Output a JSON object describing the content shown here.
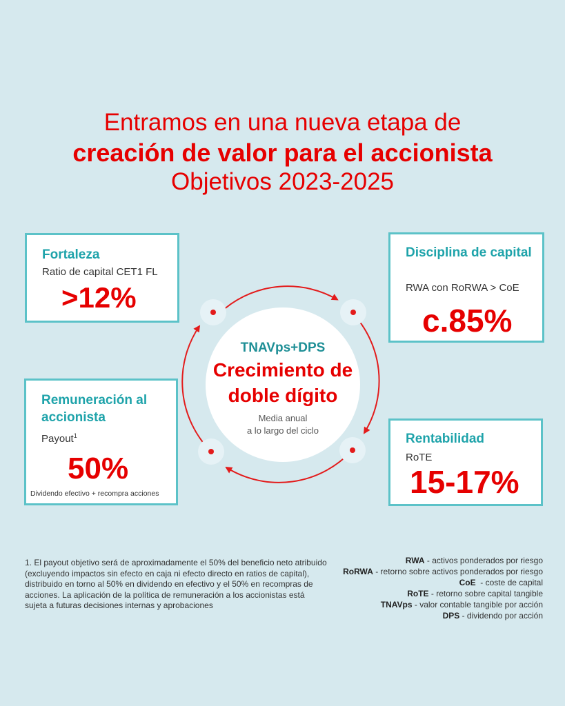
{
  "title": {
    "line1": "Entramos en una nueva etapa de",
    "line2": "creación de valor para el accionista",
    "line3": "Objetivos 2023-2025"
  },
  "cards": {
    "fortaleza": {
      "heading": "Fortaleza",
      "subtitle": "Ratio de capital CET1 FL",
      "value": ">12%"
    },
    "disciplina": {
      "heading": "Disciplina de capital",
      "subtitle": "RWA con RoRWA > CoE",
      "value": "c.85%"
    },
    "remuneracion": {
      "heading": "Remuneración al accionista",
      "subtitle": "Payout",
      "subtitle_sup": "1",
      "value": "50%",
      "note": "Dividendo efectivo + recompra acciones"
    },
    "rentabilidad": {
      "heading": "Rentabilidad",
      "subtitle": "RoTE",
      "value": "15-17%"
    }
  },
  "center": {
    "label": "TNAVps+DPS",
    "main_line1": "Crecimiento de",
    "main_line2": "doble dígito",
    "sub_line1": "Media anual",
    "sub_line2": "a lo largo del ciclo"
  },
  "footnote": "1. El payout objetivo será de aproximadamente el 50% del beneficio neto atribuido (excluyendo impactos sin efecto en caja ni efecto directo en ratios de capital), distribuido en torno al 50% en dividendo en efectivo y el 50% en recompras de acciones. La aplicación de la política de remuneración a los accionistas está sujeta a futuras decisiones internas y aprobaciones",
  "glossary": [
    {
      "term": "RWA",
      "definition": " - activos ponderados por riesgo"
    },
    {
      "term": "RoRWA",
      "definition": " - retorno sobre activos ponderados por riesgo"
    },
    {
      "term": "CoE",
      "definition": "  - coste de capital"
    },
    {
      "term": "RoTE",
      "definition": " - retorno sobre capital tangible"
    },
    {
      "term": "TNAVps",
      "definition": " - valor contable tangible por acción"
    },
    {
      "term": "DPS",
      "definition": " - dividendo por acción"
    }
  ],
  "colors": {
    "background": "#d6e9ee",
    "accent_red": "#e60000",
    "accent_teal": "#1ea3aa",
    "card_border": "#5cc2c8"
  }
}
